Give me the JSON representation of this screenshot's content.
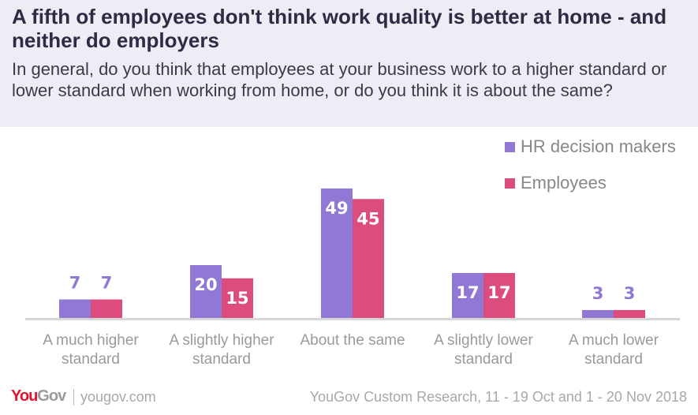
{
  "header": {
    "title": "A fifth of employees don't think work quality is better at home - and neither do employers",
    "subtitle": "In general, do you think that employees at your business work to a higher standard or lower standard when working from home, or do you think it is about the same?"
  },
  "chart_data": {
    "type": "bar",
    "categories": [
      "A much higher standard",
      "A slightly higher standard",
      "About the same",
      "A slightly lower standard",
      "A much lower standard"
    ],
    "series": [
      {
        "name": "HR decision makers",
        "color": "#9178d4",
        "values": [
          7,
          20,
          49,
          17,
          3
        ]
      },
      {
        "name": "Employees",
        "color": "#dc4c7e",
        "values": [
          7,
          15,
          45,
          17,
          3
        ]
      }
    ],
    "legend_position": "top-right",
    "ylim": [
      0,
      55
    ]
  },
  "footer": {
    "logo_you": "You",
    "logo_gov": "Gov",
    "site": "yougov.com",
    "source": "YouGov Custom Research, 11 - 19 Oct and 1 - 20 Nov 2018"
  }
}
